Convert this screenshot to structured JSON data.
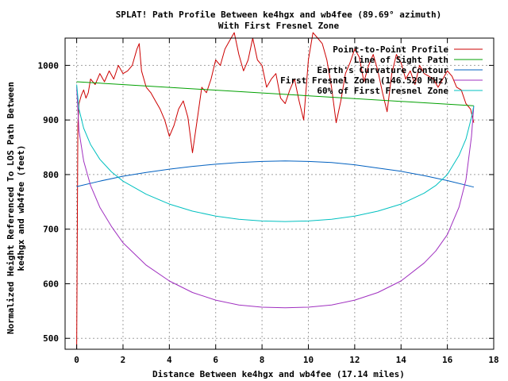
{
  "chart_data": {
    "type": "line",
    "title": "SPLAT! Path Profile Between ke4hgx and wb4fee (89.69° azimuth)",
    "subtitle": "With First Fresnel Zone",
    "xlabel": "Distance Between ke4hgx and wb4fee (17.14 miles)",
    "ylabel_lines": [
      "Normalized Height Referenced To LOS Path Between",
      "ke4hgx and wb4fee (feet)"
    ],
    "xlim": [
      -0.5,
      18
    ],
    "ylim": [
      480,
      1050
    ],
    "xticks": [
      0,
      2,
      4,
      6,
      8,
      10,
      12,
      14,
      16,
      18
    ],
    "yticks": [
      500,
      600,
      700,
      800,
      900,
      1000
    ],
    "grid": true,
    "legend_position": "top-right",
    "series": [
      {
        "name": "Point-to-Point Profile",
        "color": "#cc0000",
        "x": [
          0,
          0.05,
          0.1,
          0.2,
          0.3,
          0.4,
          0.5,
          0.6,
          0.8,
          1.0,
          1.2,
          1.4,
          1.6,
          1.8,
          2.0,
          2.2,
          2.4,
          2.6,
          2.7,
          2.8,
          3.0,
          3.2,
          3.4,
          3.6,
          3.8,
          4.0,
          4.2,
          4.4,
          4.6,
          4.8,
          5.0,
          5.2,
          5.4,
          5.6,
          5.8,
          6.0,
          6.2,
          6.4,
          6.6,
          6.8,
          7.0,
          7.2,
          7.4,
          7.6,
          7.8,
          8.0,
          8.2,
          8.4,
          8.6,
          8.8,
          9.0,
          9.2,
          9.4,
          9.6,
          9.8,
          10.0,
          10.2,
          10.4,
          10.6,
          10.8,
          11.0,
          11.2,
          11.4,
          11.6,
          11.8,
          12.0,
          12.2,
          12.4,
          12.6,
          12.8,
          13.0,
          13.2,
          13.4,
          13.6,
          13.8,
          14.0,
          14.2,
          14.4,
          14.6,
          14.8,
          15.0,
          15.2,
          15.4,
          15.6,
          15.8,
          16.0,
          16.2,
          16.4,
          16.6,
          16.8,
          17.0,
          17.14
        ],
        "y": [
          480,
          890,
          930,
          945,
          955,
          940,
          950,
          975,
          965,
          985,
          970,
          990,
          975,
          1000,
          985,
          990,
          1000,
          1030,
          1040,
          990,
          960,
          950,
          935,
          920,
          900,
          870,
          890,
          920,
          935,
          905,
          840,
          900,
          960,
          950,
          975,
          1010,
          1000,
          1030,
          1045,
          1060,
          1020,
          990,
          1010,
          1050,
          1010,
          1000,
          960,
          975,
          985,
          940,
          930,
          955,
          975,
          935,
          900,
          1010,
          1060,
          1050,
          1040,
          1010,
          960,
          895,
          935,
          985,
          1005,
          1030,
          1015,
          970,
          1000,
          1020,
          990,
          950,
          915,
          985,
          1020,
          1005,
          975,
          990,
          965,
          1000,
          985,
          980,
          975,
          960,
          975,
          990,
          980,
          960,
          955,
          930,
          920,
          895
        ]
      },
      {
        "name": "Line of Sight Path",
        "color": "#00a000",
        "x": [
          0,
          17.14
        ],
        "y": [
          970,
          926
        ]
      },
      {
        "name": "Earth's Curvature Contour",
        "color": "#0060c0",
        "x": [
          0,
          1,
          2,
          3,
          4,
          5,
          6,
          7,
          8,
          9,
          10,
          11,
          12,
          13,
          14,
          15,
          16,
          17.14
        ],
        "y": [
          778,
          788,
          797,
          804,
          810,
          815,
          819,
          822,
          824,
          825,
          824,
          822,
          818,
          812,
          806,
          798,
          789,
          777
        ]
      },
      {
        "name": "First Fresnel Zone (146.520 MHz)",
        "color": "#a030c0",
        "x": [
          0,
          0.1,
          0.3,
          0.6,
          1,
          1.5,
          2,
          3,
          4,
          5,
          6,
          7,
          8,
          9,
          10,
          11,
          12,
          13,
          14,
          15,
          15.5,
          16,
          16.5,
          16.8,
          17.04,
          17.14
        ],
        "y": [
          960,
          880,
          825,
          780,
          740,
          705,
          675,
          634,
          605,
          584,
          570,
          561,
          557,
          556,
          557,
          561,
          570,
          584,
          605,
          638,
          660,
          690,
          740,
          790,
          870,
          926
        ]
      },
      {
        "name": "60% of First Fresnel Zone",
        "color": "#00c0c0",
        "x": [
          0,
          0.1,
          0.3,
          0.6,
          1,
          1.5,
          2,
          3,
          4,
          5,
          6,
          7,
          8,
          9,
          10,
          11,
          12,
          13,
          14,
          15,
          15.5,
          16,
          16.5,
          16.8,
          17.04,
          17.14
        ],
        "y": [
          965,
          920,
          885,
          855,
          828,
          805,
          788,
          764,
          746,
          733,
          724,
          718,
          715,
          714,
          715,
          718,
          724,
          733,
          746,
          766,
          780,
          800,
          835,
          865,
          905,
          926
        ]
      }
    ]
  }
}
